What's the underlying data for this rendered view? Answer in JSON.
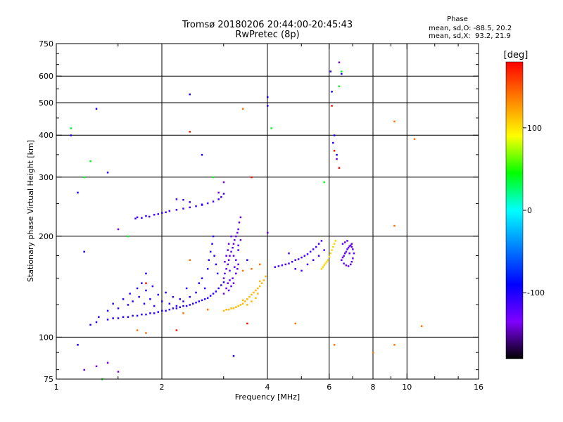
{
  "header": {
    "title_line1": "Tromsø 20180206 20:44:00-20:45:43",
    "title_line2": "RwPretec (8p)"
  },
  "phase_box": {
    "title": "Phase",
    "line_o": "mean, sd,O: -88.5, 20.2",
    "line_x": "mean, sd,X:  93.2, 21.9"
  },
  "chart_data": {
    "type": "scatter",
    "xlabel": "Frequency [MHz]",
    "ylabel": "Stationary phase Virtual Height [km]",
    "x_scale": "log",
    "y_scale": "log",
    "xlim": [
      1,
      16
    ],
    "ylim": [
      75,
      750
    ],
    "grid": true,
    "x_ticks": [
      1,
      2,
      4,
      6,
      8,
      10,
      16
    ],
    "x_tick_labels": [
      "1",
      "2",
      "4",
      "6",
      "8",
      "10",
      "16"
    ],
    "x_minor_ticks": [
      1.5,
      3,
      5,
      7,
      9,
      12,
      14
    ],
    "x_grid_lines": [
      2,
      4,
      6,
      8,
      10
    ],
    "y_ticks": [
      75,
      100,
      200,
      300,
      400,
      500,
      600,
      750
    ],
    "y_tick_labels": [
      "75",
      "100",
      "200",
      "300",
      "400",
      "500",
      "600",
      "750"
    ],
    "y_minor_ticks": [
      80,
      90,
      125,
      150,
      175,
      250,
      350,
      450,
      550,
      650,
      700
    ],
    "y_grid_lines": [
      100,
      200,
      300,
      400,
      500,
      600
    ],
    "colorbar": {
      "label": "[deg]",
      "range": [
        -180,
        180
      ],
      "ticks": [
        100,
        0,
        -100
      ],
      "tick_labels": [
        "100",
        "0",
        "-100"
      ],
      "colors": [
        "#ff0000",
        "#ff8000",
        "#ffff00",
        "#00ff00",
        "#00ffff",
        "#0080ff",
        "#0000ff",
        "#8000ff",
        "#000000"
      ]
    },
    "series": [
      {
        "phase": -112,
        "points": [
          [
            1.68,
            226
          ],
          [
            1.7,
            228
          ],
          [
            1.75,
            227
          ],
          [
            1.8,
            230
          ],
          [
            1.84,
            229
          ],
          [
            1.9,
            232
          ],
          [
            1.95,
            233
          ],
          [
            2.0,
            235
          ],
          [
            2.05,
            236
          ],
          [
            2.1,
            238
          ],
          [
            2.2,
            240
          ],
          [
            2.3,
            242
          ],
          [
            2.4,
            244
          ],
          [
            2.5,
            246
          ],
          [
            2.6,
            248
          ],
          [
            2.7,
            251
          ],
          [
            2.8,
            254
          ],
          [
            2.9,
            258
          ],
          [
            2.95,
            262
          ],
          [
            3.0,
            268
          ],
          [
            2.2,
            258
          ],
          [
            2.3,
            257
          ],
          [
            2.4,
            253
          ],
          [
            2.6,
            249
          ]
        ]
      },
      {
        "phase": -105,
        "points": [
          [
            1.4,
            113
          ],
          [
            1.45,
            114
          ],
          [
            1.5,
            114
          ],
          [
            1.55,
            115
          ],
          [
            1.6,
            115
          ],
          [
            1.65,
            116
          ],
          [
            1.7,
            116
          ],
          [
            1.75,
            117
          ],
          [
            1.8,
            117
          ],
          [
            1.85,
            118
          ],
          [
            1.9,
            118
          ],
          [
            1.95,
            119
          ],
          [
            2.0,
            120
          ],
          [
            2.05,
            120
          ],
          [
            2.1,
            121
          ],
          [
            2.15,
            122
          ],
          [
            2.2,
            122
          ],
          [
            2.25,
            123
          ],
          [
            2.3,
            124
          ],
          [
            2.35,
            124
          ],
          [
            2.4,
            125
          ],
          [
            2.45,
            126
          ],
          [
            2.5,
            127
          ],
          [
            2.55,
            128
          ],
          [
            2.6,
            129
          ],
          [
            2.65,
            130
          ],
          [
            2.7,
            131
          ],
          [
            2.75,
            133
          ],
          [
            2.8,
            135
          ],
          [
            2.85,
            137
          ],
          [
            2.9,
            140
          ],
          [
            2.95,
            143
          ],
          [
            3.0,
            146
          ],
          [
            1.5,
            122
          ],
          [
            1.55,
            130
          ],
          [
            1.6,
            125
          ],
          [
            1.62,
            135
          ],
          [
            1.65,
            128
          ],
          [
            1.7,
            140
          ],
          [
            1.72,
            132
          ],
          [
            1.75,
            145
          ],
          [
            1.78,
            126
          ],
          [
            1.8,
            138
          ],
          [
            1.85,
            130
          ],
          [
            1.88,
            142
          ],
          [
            1.9,
            124
          ],
          [
            1.95,
            134
          ],
          [
            2.0,
            128
          ],
          [
            2.05,
            136
          ],
          [
            2.1,
            126
          ],
          [
            2.15,
            132
          ],
          [
            2.2,
            124
          ],
          [
            2.25,
            130
          ],
          [
            2.3,
            128
          ],
          [
            2.35,
            140
          ],
          [
            2.4,
            132
          ],
          [
            2.5,
            136
          ],
          [
            2.55,
            145
          ],
          [
            2.6,
            150
          ],
          [
            2.65,
            140
          ],
          [
            2.7,
            160
          ],
          [
            2.72,
            170
          ],
          [
            2.75,
            180
          ],
          [
            2.78,
            190
          ],
          [
            2.8,
            200
          ],
          [
            2.82,
            175
          ],
          [
            2.85,
            165
          ],
          [
            2.88,
            155
          ],
          [
            1.4,
            120
          ],
          [
            1.45,
            126
          ],
          [
            1.3,
            111
          ],
          [
            1.25,
            109
          ],
          [
            1.32,
            115
          ]
        ]
      },
      {
        "phase": -125,
        "points": [
          [
            3.0,
            150
          ],
          [
            3.02,
            155
          ],
          [
            3.05,
            160
          ],
          [
            3.08,
            165
          ],
          [
            3.1,
            170
          ],
          [
            3.12,
            175
          ],
          [
            3.15,
            180
          ],
          [
            3.18,
            185
          ],
          [
            3.2,
            190
          ],
          [
            3.22,
            195
          ],
          [
            3.25,
            200
          ],
          [
            3.28,
            205
          ],
          [
            3.3,
            210
          ],
          [
            3.32,
            220
          ],
          [
            3.35,
            228
          ],
          [
            3.05,
            140
          ],
          [
            3.08,
            145
          ],
          [
            3.1,
            138
          ],
          [
            3.12,
            148
          ],
          [
            3.15,
            142
          ],
          [
            3.18,
            150
          ],
          [
            3.2,
            145
          ],
          [
            3.25,
            155
          ],
          [
            3.28,
            160
          ],
          [
            3.3,
            165
          ],
          [
            3.02,
            168
          ],
          [
            3.05,
            175
          ],
          [
            3.08,
            182
          ],
          [
            3.1,
            190
          ],
          [
            3.15,
            200
          ],
          [
            3.2,
            175
          ],
          [
            3.25,
            170
          ],
          [
            3.3,
            182
          ],
          [
            3.0,
            135
          ],
          [
            3.12,
            158
          ],
          [
            3.22,
            162
          ],
          [
            3.3,
            188
          ],
          [
            3.35,
            195
          ]
        ]
      },
      {
        "phase": 115,
        "points": [
          [
            3.0,
            120
          ],
          [
            3.05,
            121
          ],
          [
            3.1,
            121
          ],
          [
            3.15,
            122
          ],
          [
            3.2,
            122
          ],
          [
            3.25,
            123
          ],
          [
            3.3,
            124
          ],
          [
            3.35,
            125
          ],
          [
            3.4,
            126
          ],
          [
            3.45,
            128
          ],
          [
            3.5,
            130
          ],
          [
            3.55,
            132
          ],
          [
            3.6,
            134
          ],
          [
            3.65,
            136
          ],
          [
            3.7,
            138
          ],
          [
            3.75,
            140
          ],
          [
            3.8,
            142
          ],
          [
            3.85,
            145
          ],
          [
            3.9,
            148
          ],
          [
            3.95,
            152
          ],
          [
            3.4,
            129
          ],
          [
            3.5,
            125
          ],
          [
            3.6,
            128
          ],
          [
            3.7,
            131
          ],
          [
            3.75,
            135
          ],
          [
            3.8,
            147
          ]
        ]
      },
      {
        "phase": -115,
        "points": [
          [
            4.2,
            162
          ],
          [
            4.3,
            163
          ],
          [
            4.4,
            164
          ],
          [
            4.5,
            165
          ],
          [
            4.6,
            166
          ],
          [
            4.7,
            168
          ],
          [
            4.8,
            170
          ],
          [
            4.9,
            171
          ],
          [
            5.0,
            173
          ],
          [
            5.1,
            175
          ],
          [
            5.2,
            177
          ],
          [
            5.3,
            180
          ],
          [
            5.4,
            183
          ],
          [
            5.5,
            186
          ],
          [
            5.6,
            190
          ],
          [
            5.7,
            194
          ],
          [
            4.6,
            178
          ],
          [
            4.8,
            160
          ],
          [
            5.0,
            158
          ],
          [
            5.2,
            165
          ],
          [
            5.4,
            170
          ],
          [
            5.6,
            175
          ],
          [
            5.8,
            182
          ]
        ]
      },
      {
        "phase": -125,
        "points": [
          [
            6.5,
            170
          ],
          [
            6.55,
            173
          ],
          [
            6.6,
            175
          ],
          [
            6.65,
            178
          ],
          [
            6.7,
            180
          ],
          [
            6.75,
            183
          ],
          [
            6.8,
            185
          ],
          [
            6.85,
            187
          ],
          [
            6.9,
            188
          ],
          [
            6.95,
            186
          ],
          [
            7.0,
            183
          ],
          [
            7.05,
            178
          ],
          [
            7.0,
            172
          ],
          [
            6.95,
            168
          ],
          [
            6.9,
            165
          ],
          [
            6.8,
            163
          ],
          [
            6.7,
            164
          ],
          [
            6.6,
            166
          ],
          [
            6.55,
            190
          ],
          [
            6.65,
            192
          ],
          [
            6.75,
            194
          ],
          [
            6.85,
            178
          ],
          [
            6.95,
            190
          ]
        ]
      },
      {
        "phase": 105,
        "points": [
          [
            5.7,
            160
          ],
          [
            5.75,
            162
          ],
          [
            5.8,
            164
          ],
          [
            5.85,
            166
          ],
          [
            5.9,
            168
          ],
          [
            5.95,
            170
          ],
          [
            6.0,
            174
          ],
          [
            6.05,
            178
          ],
          [
            6.1,
            182
          ],
          [
            6.15,
            186
          ],
          [
            6.2,
            190
          ],
          [
            6.25,
            194
          ]
        ]
      },
      {
        "phase": -100,
        "points": [
          [
            1.15,
            270
          ],
          [
            1.3,
            480
          ],
          [
            1.4,
            310
          ],
          [
            1.2,
            180
          ],
          [
            1.1,
            400
          ],
          [
            1.15,
            95
          ],
          [
            2.4,
            530
          ],
          [
            4.0,
            520
          ],
          [
            4.0,
            490
          ],
          [
            6.05,
            620
          ],
          [
            6.1,
            540
          ],
          [
            6.15,
            380
          ],
          [
            6.2,
            400
          ],
          [
            6.5,
            610
          ],
          [
            6.3,
            350
          ],
          [
            2.6,
            350
          ],
          [
            1.8,
            155
          ],
          [
            3.2,
            88
          ],
          [
            3.5,
            170
          ]
        ]
      },
      {
        "phase": 40,
        "points": [
          [
            1.1,
            420
          ],
          [
            1.2,
            300
          ],
          [
            1.35,
            75
          ],
          [
            1.6,
            200
          ],
          [
            2.8,
            300
          ],
          [
            4.1,
            420
          ],
          [
            5.8,
            290
          ],
          [
            6.4,
            560
          ],
          [
            6.5,
            620
          ],
          [
            1.25,
            335
          ]
        ]
      },
      {
        "phase": -140,
        "points": [
          [
            1.2,
            80
          ],
          [
            1.3,
            82
          ],
          [
            1.4,
            84
          ],
          [
            1.5,
            79
          ],
          [
            6.3,
            340
          ],
          [
            6.4,
            660
          ],
          [
            3.0,
            290
          ],
          [
            2.9,
            270
          ],
          [
            4.0,
            205
          ],
          [
            1.5,
            210
          ]
        ]
      },
      {
        "phase": 140,
        "points": [
          [
            2.3,
            118
          ],
          [
            2.7,
            121
          ],
          [
            3.4,
            158
          ],
          [
            3.6,
            160
          ],
          [
            3.8,
            165
          ],
          [
            4.8,
            110
          ],
          [
            9.2,
            440
          ],
          [
            10.5,
            390
          ],
          [
            9.2,
            215
          ],
          [
            11.0,
            108
          ],
          [
            9.2,
            95
          ],
          [
            2.4,
            170
          ],
          [
            6.2,
            95
          ],
          [
            8.0,
            90
          ],
          [
            1.7,
            105
          ],
          [
            1.8,
            103
          ],
          [
            3.4,
            480
          ]
        ]
      },
      {
        "phase": 175,
        "points": [
          [
            2.4,
            410
          ],
          [
            2.2,
            105
          ],
          [
            3.6,
            300
          ],
          [
            6.4,
            320
          ],
          [
            6.2,
            360
          ],
          [
            6.1,
            490
          ],
          [
            1.8,
            145
          ],
          [
            3.5,
            110
          ]
        ]
      }
    ]
  }
}
